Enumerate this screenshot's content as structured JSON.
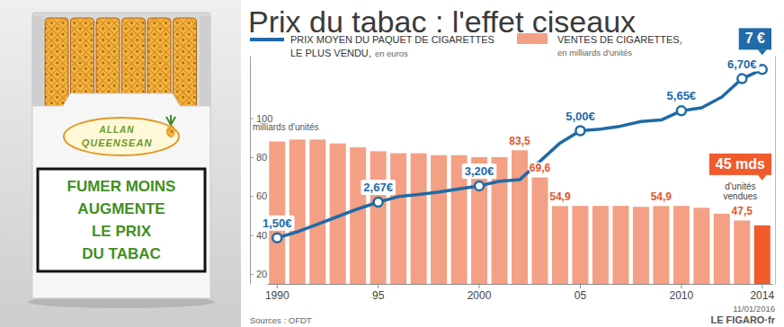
{
  "chart_data": {
    "type": "bar",
    "title": "Prix du tabac : l'effet ciseaux",
    "categories": [
      "1990",
      null,
      null,
      null,
      null,
      "95",
      null,
      null,
      null,
      null,
      "2000",
      null,
      null,
      null,
      null,
      "05",
      null,
      null,
      null,
      null,
      "2010",
      null,
      null,
      null,
      "2014"
    ],
    "ylabel": "milliards d'unités",
    "ylim": [
      15,
      132
    ],
    "yticks": [
      20,
      40,
      60,
      80,
      100
    ],
    "y2lim": [
      0,
      7.45
    ],
    "y2ticks": [],
    "grid": false,
    "legend": "top-left",
    "series": [
      {
        "name": "PRIX MOYEN DU PAQUET DE CIGARETTES LE PLUS VENDU,",
        "legend_note": "en euros",
        "type": "line",
        "axis": "y2",
        "color": "#1f6aa8",
        "marker": "circle",
        "line_style": "solid",
        "data_labels": true,
        "values": [
          1.5,
          1.7,
          1.95,
          2.2,
          2.45,
          2.67,
          2.85,
          2.92,
          3.0,
          3.1,
          3.2,
          3.35,
          3.4,
          4.0,
          4.6,
          5.0,
          5.05,
          5.15,
          5.3,
          5.35,
          5.65,
          5.75,
          6.1,
          6.7,
          7
        ],
        "value_labels": [
          "1,50€",
          null,
          null,
          null,
          null,
          "2,67€",
          null,
          null,
          null,
          null,
          "3,20€",
          null,
          null,
          null,
          null,
          "5,00€",
          null,
          null,
          null,
          null,
          "5,65€",
          null,
          null,
          "6,70€",
          "7 €"
        ]
      },
      {
        "name": "VENTES DE CIGARETTES,",
        "legend_note": "en milliards d'unités",
        "type": "bar",
        "color": "#f4a084",
        "colors": [
          "#f4a084",
          "#f4a084",
          "#f4a084",
          "#f4a084",
          "#f4a084",
          "#f4a084",
          "#f4a084",
          "#f4a084",
          "#f4a084",
          "#f4a084",
          "#f4a084",
          "#f4a084",
          "#f4a084",
          "#f4a084",
          "#f4a084",
          "#f4a084",
          "#f4a084",
          "#f4a084",
          "#f4a084",
          "#f4a084",
          "#f4a084",
          "#f4a084",
          "#f4a084",
          "#f4a084",
          "#f15a2b"
        ],
        "data_labels": true,
        "values": [
          88,
          89,
          89,
          87,
          85,
          83,
          82,
          82,
          81,
          81,
          80,
          80,
          83.5,
          69.6,
          54.9,
          55,
          55,
          55,
          54.5,
          54.9,
          55,
          54,
          51,
          47.5,
          45
        ],
        "value_labels": [
          null,
          null,
          null,
          null,
          null,
          null,
          null,
          null,
          null,
          null,
          null,
          null,
          "83,5",
          "69,6",
          "54,9",
          null,
          null,
          null,
          null,
          "54,9",
          null,
          null,
          null,
          "47,5",
          "45 mds"
        ],
        "annotation": "d'unités vendues"
      }
    ],
    "date": "11/01/2016",
    "source": "Sources : OFDT",
    "credit": "LE FIGARO·fr"
  },
  "illustration": {
    "brand": [
      "ALLAN",
      "QUEENSEAN"
    ],
    "warning": [
      "FUMER MOINS",
      "AUGMENTE",
      "LE PRIX",
      "DU TABAC"
    ]
  }
}
